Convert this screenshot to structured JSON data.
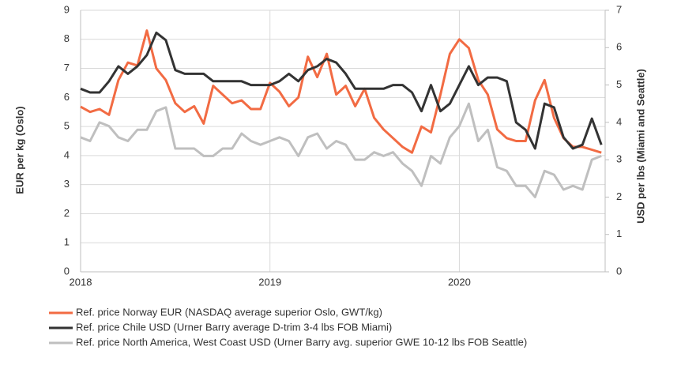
{
  "chart_data": {
    "type": "line",
    "y_label": "EUR per kg (Oslo)",
    "y2_label": "USD per lbs (Miami and Seattle)",
    "x": [
      2018.0,
      2018.05,
      2018.1,
      2018.15,
      2018.2,
      2018.25,
      2018.3,
      2018.35,
      2018.4,
      2018.45,
      2018.5,
      2018.55,
      2018.6,
      2018.65,
      2018.7,
      2018.75,
      2018.8,
      2018.85,
      2018.9,
      2018.95,
      2019.0,
      2019.05,
      2019.1,
      2019.15,
      2019.2,
      2019.25,
      2019.3,
      2019.35,
      2019.4,
      2019.45,
      2019.5,
      2019.55,
      2019.6,
      2019.65,
      2019.7,
      2019.75,
      2019.8,
      2019.85,
      2019.9,
      2019.95,
      2020.0,
      2020.05,
      2020.1,
      2020.15,
      2020.2,
      2020.25,
      2020.3,
      2020.35,
      2020.4,
      2020.45,
      2020.5,
      2020.55,
      2020.6,
      2020.65,
      2020.7,
      2020.75
    ],
    "xlim": [
      2018,
      2020.77
    ],
    "xticks": [
      2018,
      2019,
      2020
    ],
    "ylim": [
      0,
      9
    ],
    "yticks": [
      0,
      1,
      2,
      3,
      4,
      5,
      6,
      7,
      8,
      9
    ],
    "y2lim": [
      0,
      7
    ],
    "y2ticks": [
      0,
      1,
      2,
      3,
      4,
      5,
      6,
      7
    ],
    "grid": true,
    "legend": "bottom",
    "series": [
      {
        "name": "Ref. price Norway EUR (NASDAQ average superior Oslo, GWT/kg)",
        "color": "#f26b43",
        "values": [
          5.68,
          5.5,
          5.6,
          5.4,
          6.6,
          7.2,
          7.1,
          8.3,
          7.0,
          6.6,
          5.8,
          5.5,
          5.7,
          5.1,
          6.4,
          6.1,
          5.8,
          5.9,
          5.6,
          5.6,
          6.5,
          6.2,
          5.7,
          6.0,
          7.4,
          6.7,
          7.5,
          6.1,
          6.4,
          5.7,
          6.3,
          5.3,
          4.9,
          4.6,
          4.3,
          4.1,
          5.0,
          4.8,
          6.1,
          7.5,
          8.0,
          7.7,
          6.6,
          6.1,
          4.9,
          4.6,
          4.5,
          4.5,
          5.9,
          6.6,
          5.3,
          4.6,
          4.3,
          4.3,
          4.2,
          4.1
        ]
      },
      {
        "name": "Ref. price Chile USD (Urner Barry average D-trim 3-4 lbs FOB Miami)",
        "color": "#333333",
        "axis": "y2",
        "values": [
          4.9,
          4.8,
          4.8,
          5.1,
          5.5,
          5.3,
          5.5,
          5.8,
          6.4,
          6.2,
          5.4,
          5.3,
          5.3,
          5.3,
          5.1,
          5.1,
          5.1,
          5.1,
          5.0,
          5.0,
          5.0,
          5.1,
          5.3,
          5.1,
          5.4,
          5.5,
          5.7,
          5.6,
          5.3,
          4.9,
          4.9,
          4.9,
          4.9,
          5.0,
          5.0,
          4.8,
          4.3,
          5.0,
          4.3,
          4.5,
          5.0,
          5.5,
          5.0,
          5.2,
          5.2,
          5.1,
          4.0,
          3.8,
          3.3,
          4.5,
          4.4,
          3.6,
          3.3,
          3.4,
          4.1,
          3.4
        ]
      },
      {
        "name": "Ref. price North America, West Coast USD (Urner Barry avg. superior GWE 10-12 lbs FOB Seattle)",
        "color": "#bfbfbf",
        "axis": "y2",
        "values": [
          3.6,
          3.5,
          4.0,
          3.9,
          3.6,
          3.5,
          3.8,
          3.8,
          4.3,
          4.4,
          3.3,
          3.3,
          3.3,
          3.1,
          3.1,
          3.3,
          3.3,
          3.7,
          3.5,
          3.4,
          3.5,
          3.6,
          3.5,
          3.1,
          3.6,
          3.7,
          3.3,
          3.5,
          3.4,
          3.0,
          3.0,
          3.2,
          3.1,
          3.2,
          2.9,
          2.7,
          2.3,
          3.1,
          2.9,
          3.6,
          3.9,
          4.5,
          3.5,
          3.8,
          2.8,
          2.7,
          2.3,
          2.3,
          2.0,
          2.7,
          2.6,
          2.2,
          2.3,
          2.2,
          3.0,
          3.1
        ]
      }
    ]
  }
}
